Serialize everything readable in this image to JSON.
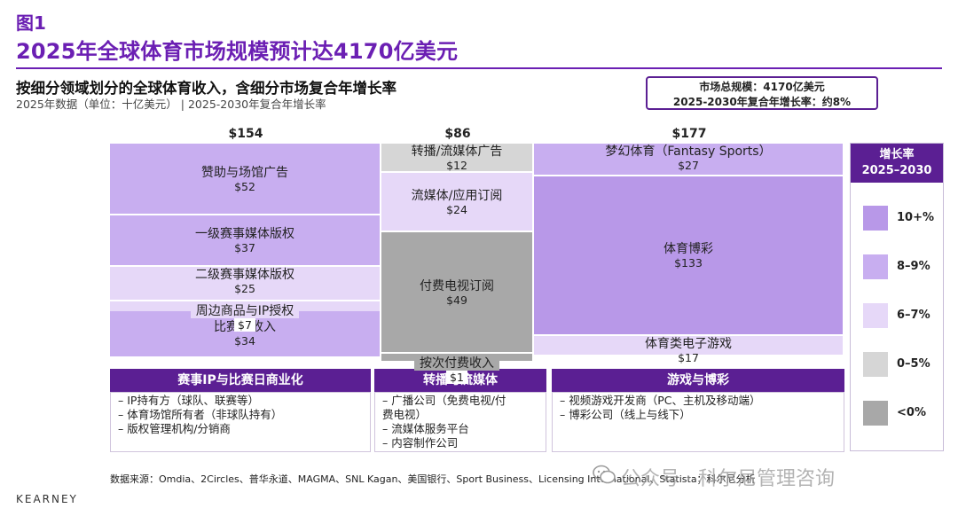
{
  "header": {
    "figure_label": "图1",
    "title": "2025年全球体育市场规模预计达4170亿美元",
    "subtitle": "按细分领域划分的全球体育收入，含细分市场复合年增长率",
    "note": "2025年数据（单位：十亿美元） | 2025-2030年复合年增长率"
  },
  "summary": {
    "line1": "市场总规模：4170亿美元",
    "line2": "2025-2030年复合年增长率：约8%"
  },
  "colors": {
    "g10": "#b898e8",
    "g8": "#c8aef0",
    "g6": "#e6d8f8",
    "g0": "#d6d6d6",
    "gneg": "#a8a8a8",
    "accent": "#5b1f93"
  },
  "chart_data": {
    "type": "marimekko",
    "columns": [
      {
        "total_label": "$154",
        "total": 154,
        "header": "赛事IP与比赛日商业化",
        "items": [
          {
            "name": "赞助与场馆广告",
            "value": 52,
            "value_label": "$52",
            "growth": "8–9%"
          },
          {
            "name": "一级赛事媒体版权",
            "value": 37,
            "value_label": "$37",
            "growth": "8–9%"
          },
          {
            "name": "二级赛事媒体版权",
            "value": 25,
            "value_label": "$25",
            "growth": "6–7%"
          },
          {
            "name": "周边商品与IP授权",
            "value": 7,
            "value_label": "$7",
            "growth": "6–7%"
          },
          {
            "name": "比赛日收入",
            "value": 34,
            "value_label": "$34",
            "growth": "8–9%"
          }
        ],
        "bullets": [
          "– IP持有方（球队、联赛等）",
          "– 体育场馆所有者（非球队持有）",
          "– 版权管理机构/分销商"
        ]
      },
      {
        "total_label": "$86",
        "total": 86,
        "header": "转播与流媒体",
        "items": [
          {
            "name": "转播/流媒体广告",
            "value": 12,
            "value_label": "$12",
            "growth": "0–5%"
          },
          {
            "name": "流媒体/应用订阅",
            "value": 24,
            "value_label": "$24",
            "growth": "6–7%"
          },
          {
            "name": "付费电视订阅",
            "value": 49,
            "value_label": "$49",
            "growth": "<0%"
          },
          {
            "name": "按次付费收入",
            "value": 1,
            "value_label": "$1",
            "growth": "<0%"
          }
        ],
        "bullets": [
          "– 广播公司（免费电视/付",
          "   费电视）",
          "– 流媒体服务平台",
          "– 内容制作公司"
        ]
      },
      {
        "total_label": "$177",
        "total": 177,
        "header": "游戏与博彩",
        "items": [
          {
            "name": "梦幻体育（Fantasy Sports）",
            "value": 27,
            "value_label": "$27",
            "growth": "8–9%"
          },
          {
            "name": "体育博彩",
            "value": 133,
            "value_label": "$133",
            "growth": "10+%"
          },
          {
            "name": "体育类电子游戏",
            "value": 17,
            "value_label": "$17",
            "growth": "6–7%"
          }
        ],
        "bullets": [
          "– 视频游戏开发商（PC、主机及移动端）",
          "– 博彩公司（线上与线下）"
        ]
      }
    ],
    "legend": {
      "title_line1": "增长率",
      "title_line2": "2025–2030",
      "items": [
        {
          "label": "10+%",
          "color": "#b898e8"
        },
        {
          "label": "8–9%",
          "color": "#c8aef0"
        },
        {
          "label": "6–7%",
          "color": "#e6d8f8"
        },
        {
          "label": "0–5%",
          "color": "#d6d6d6"
        },
        {
          "label": "<0%",
          "color": "#a8a8a8"
        }
      ]
    }
  },
  "footer": {
    "source": "数据来源：Omdia、2Circles、普华永道、MAGMA、SNL Kagan、美国银行、Sport Business、Licensing International、Statista；科尔尼分析",
    "brand": "KEARNEY",
    "watermark": "公众号 · 科尔尼管理咨询"
  }
}
